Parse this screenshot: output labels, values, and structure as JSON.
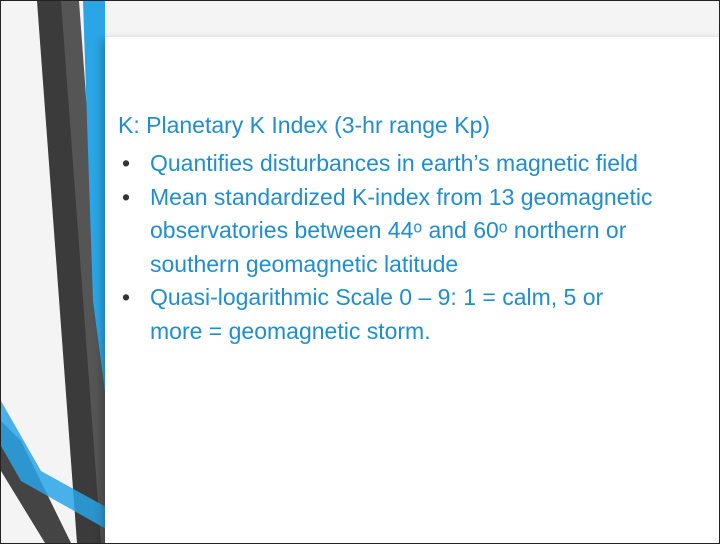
{
  "slide": {
    "heading": "K: Planetary K Index (3-hr range Kp)",
    "bullets": [
      "Quantifies disturbances in earth’s magnetic field",
      "Mean standardized K-index from 13 geomagnetic observatories between 44ᵒ and 60ᵒ northern or southern geomagnetic latitude",
      "Quasi-logarithmic Scale 0 – 9: 1 = calm, 5 or more = geomagnetic storm."
    ]
  }
}
